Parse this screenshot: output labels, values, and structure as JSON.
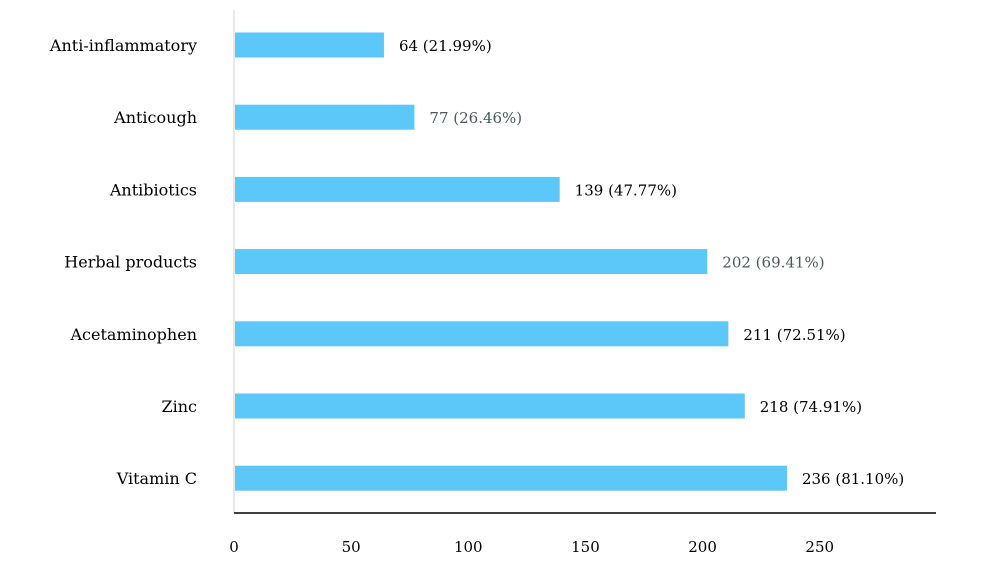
{
  "chart_data": {
    "type": "bar",
    "orientation": "horizontal",
    "categories": [
      "Anti-inflammatory",
      "Anticough",
      "Antibiotics",
      "Herbal products",
      "Acetaminophen",
      "Zinc",
      "Vitamin C"
    ],
    "values": [
      64,
      77,
      139,
      202,
      211,
      218,
      236
    ],
    "data_labels": [
      "64 (21.99%)",
      "77 (26.46%)",
      "139 (47.77%)",
      "202 (69.41%)",
      "211 (72.51%)",
      "218 (74.91%)",
      "236 (81.10%)"
    ],
    "x_ticks": [
      0,
      50,
      100,
      150,
      200,
      250
    ],
    "xlim": [
      0,
      290
    ],
    "grid": false,
    "legend": "none",
    "title": "",
    "xlabel": "",
    "ylabel": "",
    "colors": {
      "bar": "#5bc8f9",
      "axis": "#000000",
      "y_axis": "#d9d9d9",
      "text": "#000000",
      "label_alt": "#4a5a5a"
    }
  }
}
